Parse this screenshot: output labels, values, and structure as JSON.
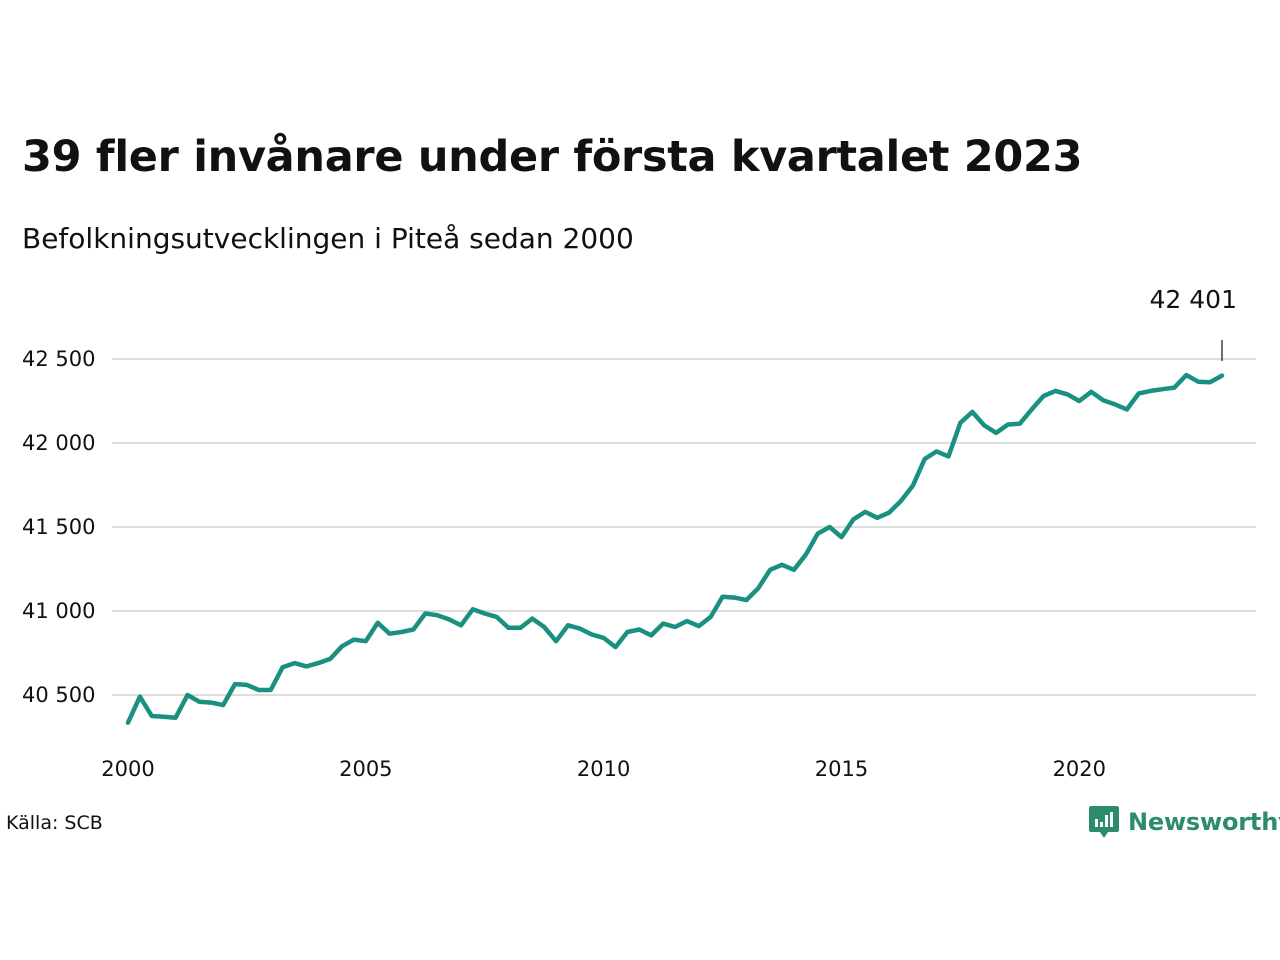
{
  "title": "39 fler invånare under första kvartalet 2023",
  "subtitle": "Befolkningsutvecklingen i Piteå sedan 2000",
  "source": "Källa: SCB",
  "brand": {
    "name": "Newsworthy"
  },
  "colors": {
    "line": "#1a9080",
    "grid": "#dddddd",
    "text": "#111111",
    "brand": "#2e8b6e"
  },
  "chart_data": {
    "type": "line",
    "title": "39 fler invånare under första kvartalet 2023",
    "subtitle": "Befolkningsutvecklingen i Piteå sedan 2000",
    "xlabel": "",
    "ylabel": "",
    "xlim": [
      2000,
      2024.25
    ],
    "ylim": [
      40350,
      42600
    ],
    "x_ticks": [
      2000,
      2005,
      2010,
      2015,
      2020
    ],
    "x_tick_labels": [
      "2000",
      "2005",
      "2010",
      "2015",
      "2020"
    ],
    "y_ticks": [
      40500,
      41000,
      41500,
      42000,
      42500
    ],
    "y_tick_labels": [
      "40 500",
      "41 000",
      "41 500",
      "42 000",
      "42 500"
    ],
    "grid": "horizontal",
    "annotation": {
      "text": "42 401",
      "x": 2023,
      "y": 42401
    },
    "series": [
      {
        "x_start": 2000,
        "x_step": 0.25,
        "values": [
          40335,
          40490,
          40375,
          40370,
          40365,
          40500,
          40460,
          40455,
          40440,
          40565,
          40560,
          40530,
          40530,
          40665,
          40690,
          40670,
          40690,
          40715,
          40790,
          40830,
          40820,
          40930,
          40865,
          40875,
          40890,
          40985,
          40975,
          40950,
          40915,
          41010,
          40985,
          40965,
          40900,
          40900,
          40955,
          40905,
          40820,
          40915,
          40895,
          40860,
          40840,
          40785,
          40875,
          40890,
          40855,
          40925,
          40905,
          40940,
          40910,
          40965,
          41085,
          41080,
          41065,
          41135,
          41245,
          41275,
          41245,
          41335,
          41460,
          41500,
          41440,
          41545,
          41590,
          41555,
          41585,
          41655,
          41745,
          41905,
          41950,
          41920,
          42120,
          42185,
          42105,
          42060,
          42110,
          42115,
          42200,
          42280,
          42310,
          42290,
          42250,
          42305,
          42255,
          42230,
          42200,
          42295,
          42310,
          42320,
          42330,
          42405,
          42365,
          42362,
          42401
        ]
      }
    ]
  }
}
